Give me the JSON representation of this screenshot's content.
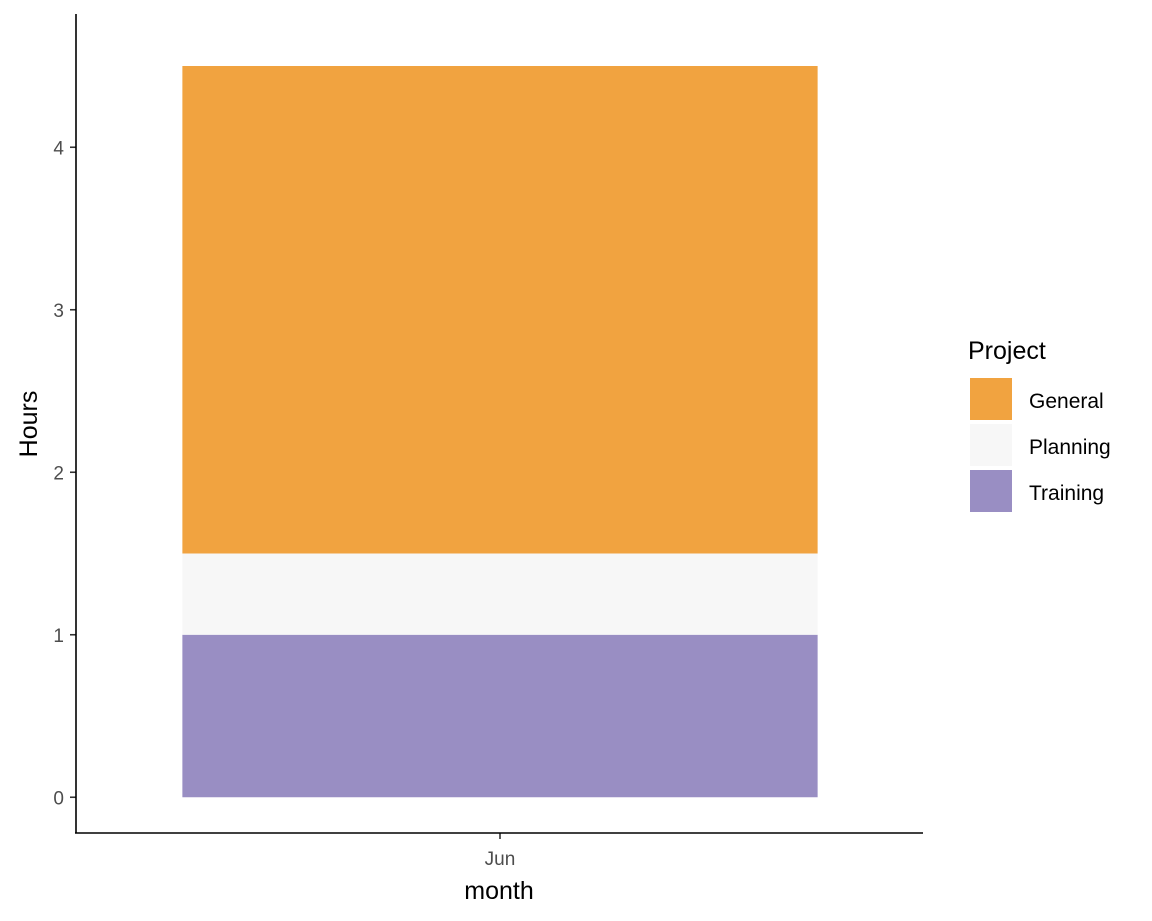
{
  "chart_data": {
    "type": "bar",
    "stacked": true,
    "categories": [
      "Jun"
    ],
    "series": [
      {
        "name": "Training",
        "values": [
          1.0
        ],
        "color": "#998EC3"
      },
      {
        "name": "Planning",
        "values": [
          0.5
        ],
        "color": "#F7F7F7"
      },
      {
        "name": "General",
        "values": [
          3.0
        ],
        "color": "#F1A340"
      }
    ],
    "xlabel": "month",
    "ylabel": "Hours",
    "yticks": [
      0,
      1,
      2,
      3,
      4
    ],
    "ylim": [
      -0.22,
      4.82
    ],
    "grid": false,
    "legend": {
      "title": "Project",
      "position": "right",
      "items": [
        "General",
        "Planning",
        "Training"
      ]
    }
  }
}
